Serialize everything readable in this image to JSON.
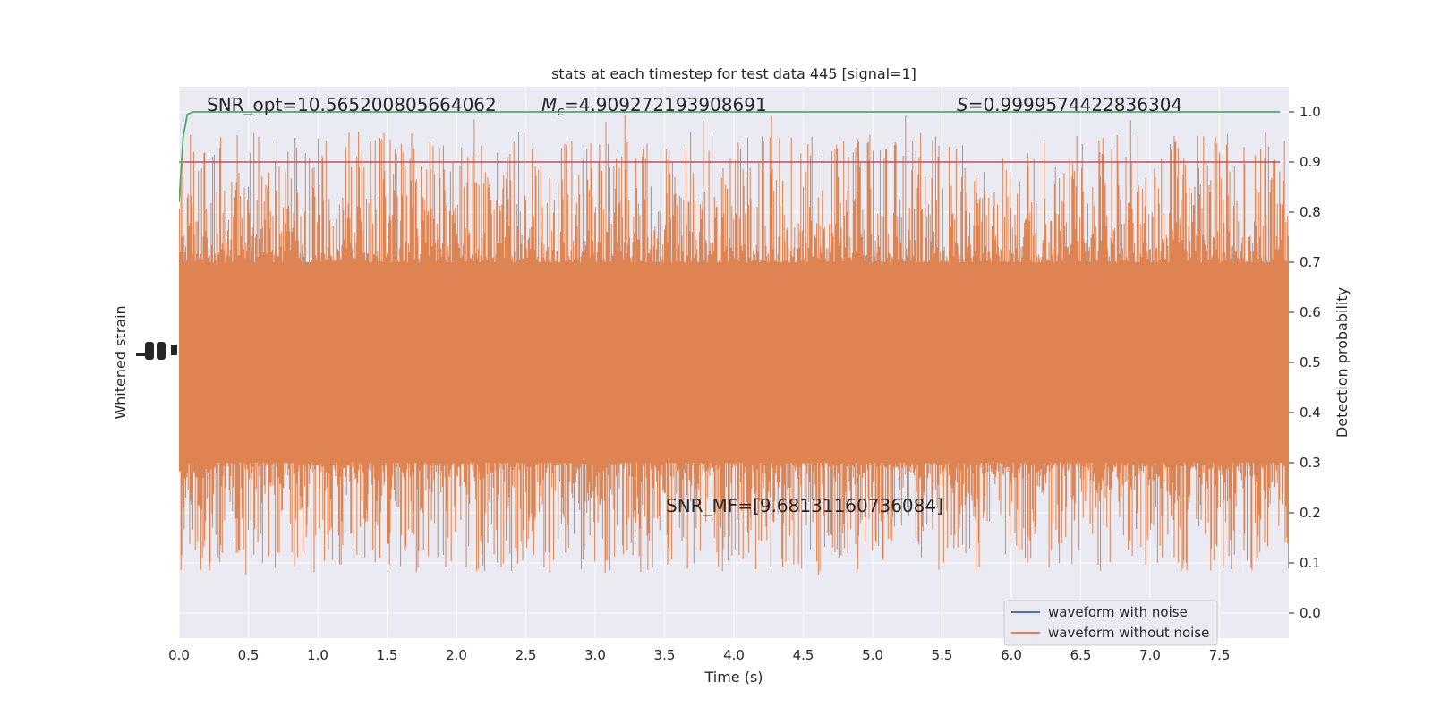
{
  "chart_data": {
    "type": "line",
    "title": "stats at each timestep for test data 445 [signal=1]",
    "xlabel": "Time (s)",
    "ylabel_left": "Whitened strain",
    "ylabel_right": "Detection probability",
    "xlim": [
      0.0,
      8.0
    ],
    "ylim_right": [
      -0.05,
      1.05
    ],
    "x_ticks": [
      "0.0",
      "0.5",
      "1.0",
      "1.5",
      "2.0",
      "2.5",
      "3.0",
      "3.5",
      "4.0",
      "4.5",
      "5.0",
      "5.5",
      "6.0",
      "6.5",
      "7.0",
      "7.5"
    ],
    "y_ticks_right": [
      "0.0",
      "0.1",
      "0.2",
      "0.3",
      "0.4",
      "0.5",
      "0.6",
      "0.7",
      "0.8",
      "0.9",
      "1.0"
    ],
    "grid": true,
    "legend_position": "lower-right",
    "annotations": {
      "snr_opt": "SNR_opt=10.565200805664062",
      "mc_symbol": "M",
      "mc_sub": "c",
      "mc_value": "=4.909272193908691",
      "s_symbol": "S",
      "s_value": "=0.9999574422836304",
      "snr_mf": "SNR_MF=[9.68131160736084]"
    },
    "series": [
      {
        "name": "waveform with noise",
        "color": "#4c72b0"
      },
      {
        "name": "waveform without noise",
        "color": "#dd8452"
      }
    ],
    "detection_probability": {
      "color": "#55a868",
      "x": [
        0.0,
        0.03,
        0.06,
        0.1,
        0.2,
        8.0
      ],
      "y": [
        0.82,
        0.95,
        0.995,
        1.0,
        1.0,
        1.0
      ]
    },
    "threshold": {
      "color": "#c44e52",
      "y": 0.9
    },
    "noise_band": {
      "typical_low": 0.3,
      "typical_high": 0.7,
      "max": 1.0,
      "min": 0.03,
      "center": 0.5
    }
  },
  "colors": {
    "plot_bg": "#eaeaf2",
    "grid": "#ffffff",
    "text": "#262626"
  }
}
